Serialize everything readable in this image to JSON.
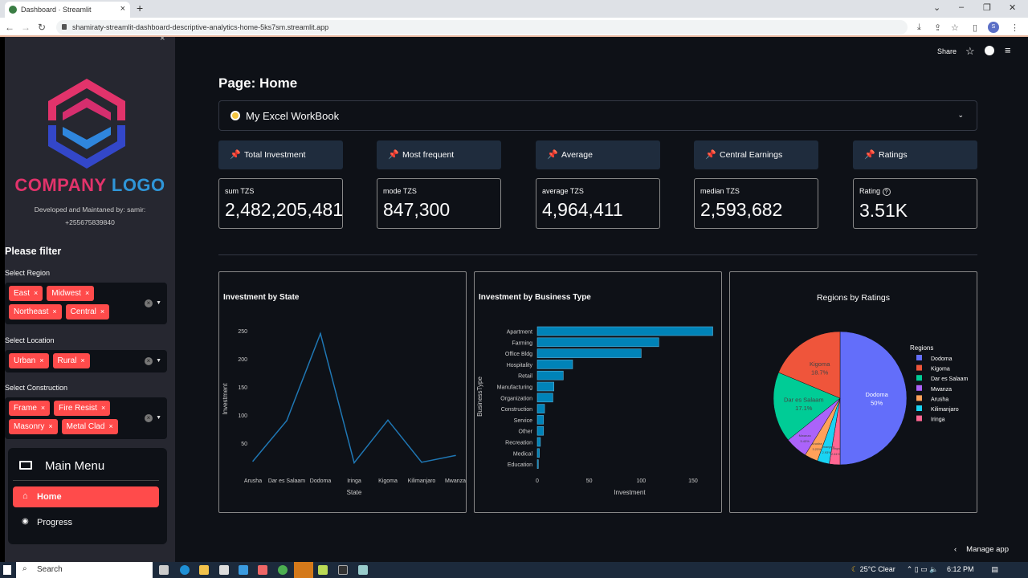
{
  "browser": {
    "tab_title": "Dashboard · Streamlit",
    "url": "shamiraty-streamlit-dashboard-descriptive-analytics-home-5ks7sm.streamlit.app",
    "profile_initial": "S"
  },
  "header": {
    "share": "Share"
  },
  "sidebar": {
    "logo_text_1": "COMPANY",
    "logo_text_2": "LOGO",
    "credit_line1": "Developed and Maintaned by: samir:",
    "credit_line2": "+255675839840",
    "filter_title": "Please filter",
    "filters": [
      {
        "label": "Select Region",
        "chips": [
          "East",
          "Midwest",
          "Northeast",
          "Central"
        ]
      },
      {
        "label": "Select Location",
        "chips": [
          "Urban",
          "Rural"
        ]
      },
      {
        "label": "Select Construction",
        "chips": [
          "Frame",
          "Fire Resist",
          "Masonry",
          "Metal Clad"
        ]
      }
    ],
    "menu": {
      "title": "Main Menu",
      "items": [
        {
          "label": "Home",
          "active": true
        },
        {
          "label": "Progress",
          "active": false
        }
      ]
    },
    "accent": "#ff4b4b"
  },
  "main": {
    "title": "Page: Home",
    "expander": "My Excel WorkBook",
    "metrics": [
      {
        "header": "Total Investment",
        "label": "sum TZS",
        "value": "2,482,205,481"
      },
      {
        "header": "Most frequent",
        "label": "mode TZS",
        "value": "847,300"
      },
      {
        "header": "Average",
        "label": "average TZS",
        "value": "4,964,411"
      },
      {
        "header": "Central Earnings",
        "label": "median TZS",
        "value": "2,593,682"
      },
      {
        "header": "Ratings",
        "label": "Rating",
        "value": "3.51K"
      }
    ],
    "manage_app": "Manage app"
  },
  "chart_data": [
    {
      "type": "line",
      "title": "Investment by State",
      "xlabel": "State",
      "ylabel": "Investment",
      "categories": [
        "Arusha",
        "Dar es Salaam",
        "Dodoma",
        "Iringa",
        "Kigoma",
        "Kilimanjaro",
        "Mwanza"
      ],
      "values": [
        18,
        90,
        245,
        15,
        91,
        16,
        28
      ],
      "yticks": [
        50,
        100,
        150,
        200,
        250
      ],
      "color": "#1f77b4"
    },
    {
      "type": "bar",
      "orientation": "horizontal",
      "title": "Investment by Business Type",
      "xlabel": "Investment",
      "ylabel": "BusinessType",
      "categories": [
        "Apartment",
        "Farming",
        "Office Bldg",
        "Hospitality",
        "Retail",
        "Manufacturing",
        "Organization",
        "Construction",
        "Service",
        "Other",
        "Recreation",
        "Medical",
        "Education"
      ],
      "values": [
        169,
        117,
        100,
        34,
        25,
        16,
        15,
        7,
        6,
        6,
        3,
        2,
        1
      ],
      "xticks": [
        0,
        50,
        100,
        150
      ],
      "color": "#0083b8"
    },
    {
      "type": "pie",
      "title": "Regions by Ratings",
      "legend_title": "Regions",
      "legend": "right",
      "categories": [
        "Dodoma",
        "Kigoma",
        "Dar es Salaam",
        "Mwanza",
        "Arusha",
        "Kilimanjaro",
        "Iringa"
      ],
      "values": [
        50,
        18.7,
        17.1,
        5.43,
        3.23,
        2.93,
        2.61
      ],
      "labels": [
        "50%",
        "18.7%",
        "17.1%",
        "5.43%",
        "3.23%",
        "2.93%",
        "2.61%"
      ],
      "colors": [
        "#636efa",
        "#ef553b",
        "#00cc96",
        "#ab63fa",
        "#ffa15a",
        "#19d3f3",
        "#ff6692"
      ]
    }
  ],
  "taskbar": {
    "search": "Search",
    "weather": "25°C  Clear",
    "time": "6:12 PM"
  }
}
